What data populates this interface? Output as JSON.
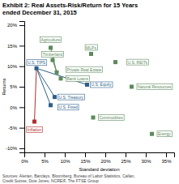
{
  "chart_data": {
    "type": "scatter",
    "title": "Exhibit 2: Real Assets-Risk/Return for 15 Years",
    "subtitle": "ended December 31, 2015",
    "xlabel": "Standard deviation",
    "ylabel": "Returns",
    "xlim": [
      0,
      37
    ],
    "ylim": [
      -11,
      21
    ],
    "xticks": [
      {
        "value": 0,
        "label": "0%"
      },
      {
        "value": 5,
        "label": "5%"
      },
      {
        "value": 10,
        "label": "10%"
      },
      {
        "value": 15,
        "label": "15%"
      },
      {
        "value": 20,
        "label": "20%"
      },
      {
        "value": 25,
        "label": "25%"
      },
      {
        "value": 30,
        "label": "30%"
      },
      {
        "value": 35,
        "label": "35%"
      }
    ],
    "yticks": [
      {
        "value": -10,
        "label": "-10%"
      },
      {
        "value": -5,
        "label": "-5%"
      },
      {
        "value": 0,
        "label": "0%"
      },
      {
        "value": 5,
        "label": "5%"
      },
      {
        "value": 10,
        "label": "10%"
      },
      {
        "value": 15,
        "label": "15%"
      },
      {
        "value": 20,
        "label": "20%"
      }
    ],
    "grid": false,
    "annotations": [
      "Sources: Alerian, Barclays, Bloomberg, Bureau of Labor Statistics, Callan,",
      "Credit Suisse, Dow Jones, NCREIF, The FTSE Group"
    ],
    "series": [
      {
        "color": "#5C8A5C",
        "marker": "square",
        "labels": [
          "Agriculture",
          "Timberland",
          "MLPs",
          "U.S. REITs",
          "Private Real Estate",
          "Bank Loans",
          "Natural Resources",
          "Commodities",
          "Energy"
        ],
        "x": [
          6.5,
          7.0,
          16.5,
          22.5,
          8.0,
          9.0,
          26.5,
          17.0,
          31.5
        ],
        "values": [
          14.5,
          11.5,
          13.0,
          11.0,
          8.5,
          7.0,
          5.0,
          -2.5,
          -6.5
        ]
      },
      {
        "color": "#2E5F8A",
        "marker": "square",
        "labels": [
          "U.S. TIPS",
          "U.S. Treasury",
          "U.S. Fixed",
          "U.S. Equity"
        ],
        "x": [
          3.0,
          7.5,
          6.5,
          15.5
        ],
        "values": [
          9.5,
          2.5,
          0.5,
          5.5
        ]
      },
      {
        "color": "#B03030",
        "marker": "square",
        "labels": [
          "Inflation"
        ],
        "x": [
          2.5
        ],
        "values": [
          -3.5
        ]
      }
    ],
    "connectors": [
      [
        "U.S. TIPS",
        "U.S. Treasury"
      ],
      [
        "U.S. TIPS",
        "U.S. Fixed"
      ],
      [
        "U.S. TIPS",
        "U.S. Equity"
      ],
      [
        "Inflation",
        "U.S. TIPS"
      ],
      [
        "Agriculture",
        "Private Real Estate"
      ],
      [
        "Timberland",
        "Private Real Estate"
      ]
    ]
  }
}
